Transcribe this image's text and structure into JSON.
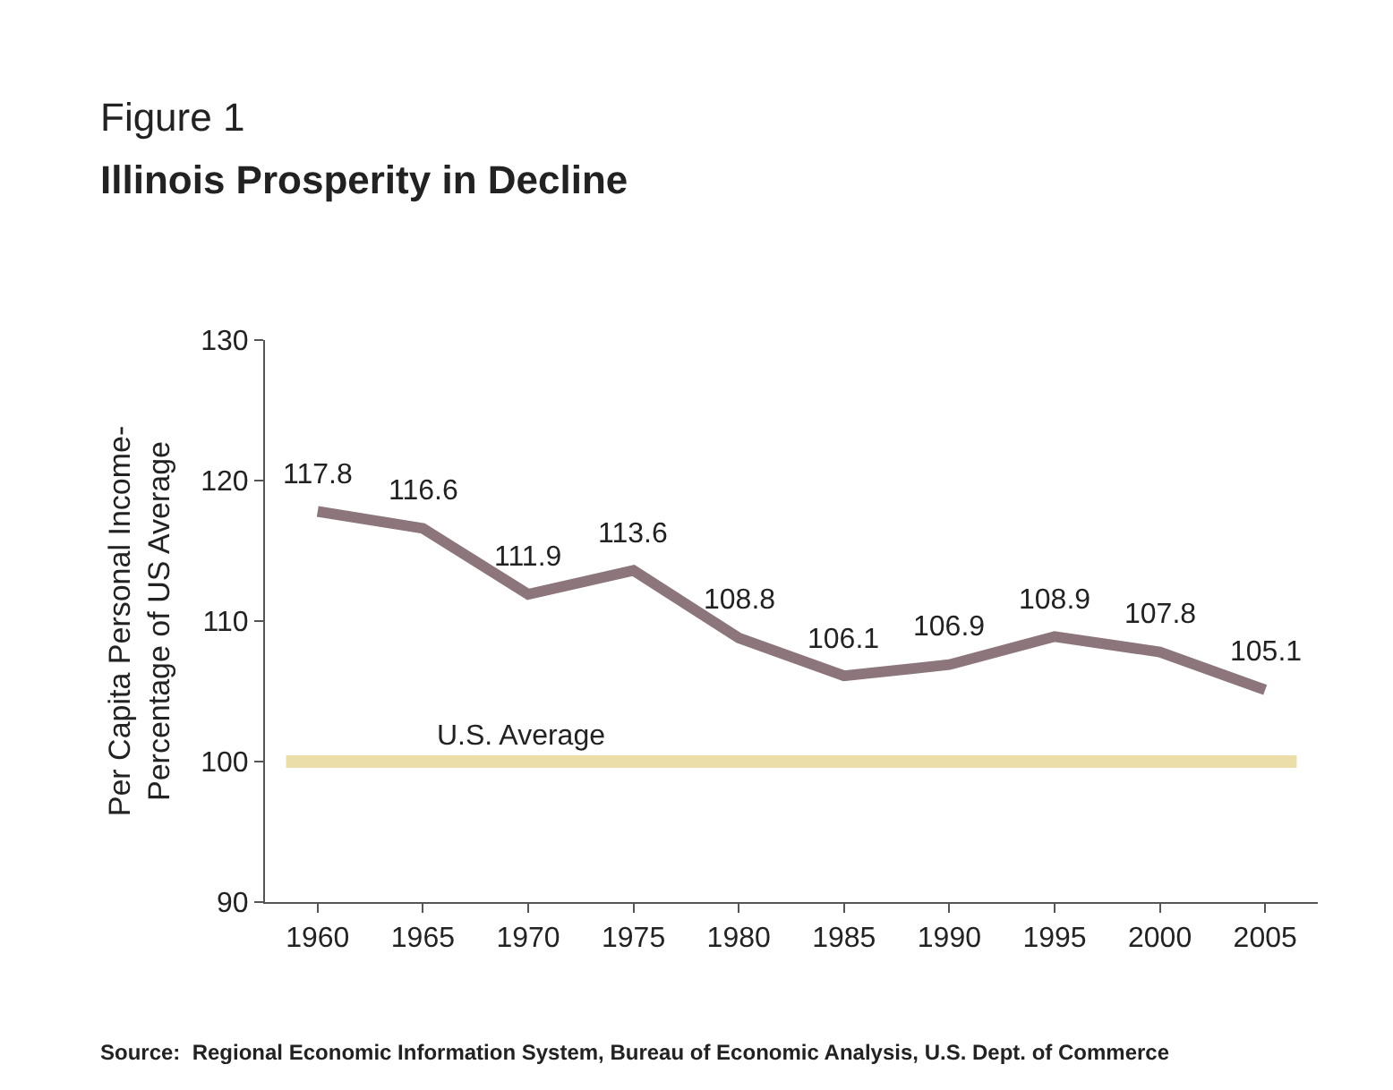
{
  "chart_data": {
    "type": "line",
    "title": "Figure 1",
    "subtitle": "Illinois Prosperity in Decline",
    "ylabel": "Per Capita Personal Income-\nPercentage of US Average",
    "categories": [
      "1960",
      "1965",
      "1970",
      "1975",
      "1980",
      "1985",
      "1990",
      "1995",
      "2000",
      "2005"
    ],
    "series": [
      {
        "color": "#8c767b",
        "values": [
          117.8,
          116.6,
          111.9,
          113.6,
          108.8,
          106.1,
          106.9,
          108.9,
          107.8,
          105.1
        ]
      }
    ],
    "data_labels": true,
    "ylim": [
      90,
      130
    ],
    "yticks": [
      90,
      100,
      110,
      120,
      130
    ],
    "grid": false,
    "marker": "none",
    "line_style": "solid",
    "ref_lines": [
      {
        "axis": "y",
        "value": 100,
        "label": "U.S. Average",
        "color": "#ecdea9"
      }
    ],
    "annotations": [
      "Source:  Regional Economic Information System, Bureau of Economic Analysis, U.S. Dept. of Commerce"
    ]
  }
}
